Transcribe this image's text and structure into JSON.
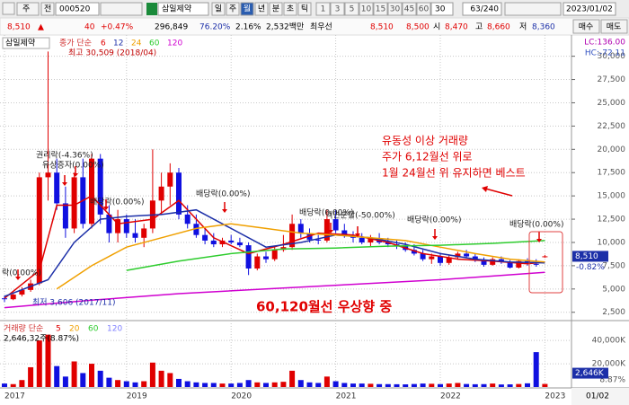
{
  "toolbar": {
    "period_type": "주",
    "market": "전",
    "code": "000520",
    "name": "삼일제약",
    "intervals": [
      "일",
      "주",
      "월",
      "년",
      "분",
      "초",
      "틱"
    ],
    "minutes": [
      "1",
      "3",
      "5",
      "10",
      "15",
      "30",
      "45",
      "60"
    ],
    "tick_choice": "30",
    "count": "63/240",
    "date": "2023/01/02"
  },
  "info_bar": {
    "price": "8,510",
    "arrow": "▲",
    "change": "40",
    "change_pct": "+0.47%",
    "volume": "296,849",
    "volume_ratio": "76.20%",
    "turnover": "2.16%",
    "amount": "2,532백만",
    "best_label": "최우선",
    "ask": "8,510",
    "bid": "8,500",
    "open_label": "시",
    "open": "8,470",
    "high_label": "고",
    "high": "8,660",
    "low_label": "저",
    "low": "8,360",
    "buy": "매수",
    "sell": "매도"
  },
  "chart_data": {
    "type": "candlestick",
    "name": "삼일제약",
    "ma_label": "종가 단순",
    "lc": "LC:136.00",
    "hc": "HC:-72.11",
    "categories": [
      "2017",
      null,
      null,
      null,
      null,
      null,
      null,
      null,
      null,
      null,
      null,
      null,
      null,
      null,
      "2019",
      null,
      null,
      null,
      null,
      null,
      null,
      null,
      null,
      null,
      null,
      null,
      "2020",
      null,
      null,
      null,
      null,
      null,
      null,
      null,
      null,
      null,
      null,
      null,
      "2021",
      null,
      null,
      null,
      null,
      null,
      null,
      null,
      null,
      null,
      null,
      null,
      "2022",
      null,
      null,
      null,
      null,
      null,
      null,
      null,
      null,
      null,
      null,
      null,
      "2023"
    ],
    "open": [
      4000,
      3900,
      4400,
      4900,
      5600,
      17000,
      17500,
      14200,
      11500,
      17000,
      12000,
      19000,
      13000,
      11000,
      12500,
      11000,
      10500,
      11500,
      14500,
      16000,
      17500,
      13000,
      12000,
      10800,
      10200,
      9800,
      10200,
      10000,
      9700,
      7200,
      8500,
      8200,
      9200,
      9500,
      12000,
      11000,
      10300,
      10200,
      12500,
      11300,
      10800,
      10500,
      10000,
      10400,
      10000,
      9800,
      9600,
      9200,
      8800,
      8200,
      8500,
      7800,
      8400,
      8800,
      8500,
      8100,
      7600,
      8200,
      7900,
      7300,
      8000,
      7700,
      8470
    ],
    "high": [
      4300,
      4600,
      5200,
      6000,
      17500,
      30509,
      19000,
      16000,
      17500,
      19000,
      19500,
      19500,
      14000,
      13500,
      13000,
      12500,
      12000,
      20000,
      17500,
      18500,
      18000,
      14000,
      13000,
      11500,
      11000,
      10500,
      10800,
      10500,
      10000,
      8800,
      9000,
      9500,
      10800,
      13000,
      12500,
      11500,
      10800,
      13500,
      13500,
      12000,
      11200,
      11000,
      10800,
      11000,
      10500,
      10200,
      10000,
      9800,
      9200,
      8800,
      8900,
      8600,
      9000,
      9200,
      8800,
      8400,
      8400,
      8500,
      8100,
      8200,
      8300,
      8200,
      8660
    ],
    "low": [
      3606,
      3800,
      4200,
      4700,
      5400,
      14500,
      13500,
      10500,
      11000,
      11500,
      11500,
      12000,
      10000,
      10000,
      10500,
      10000,
      9500,
      11000,
      13000,
      14000,
      12500,
      11500,
      10500,
      9800,
      9500,
      9500,
      9800,
      9500,
      6500,
      7000,
      7800,
      8000,
      9000,
      9200,
      10500,
      10000,
      9800,
      10000,
      11000,
      10500,
      10000,
      9800,
      9600,
      9800,
      9500,
      9300,
      9000,
      8600,
      8000,
      7700,
      7500,
      7600,
      8200,
      8300,
      7900,
      7400,
      7500,
      7700,
      7200,
      7200,
      7500,
      7400,
      8360
    ],
    "close": [
      3900,
      4400,
      4900,
      5600,
      17000,
      17500,
      14200,
      11500,
      17000,
      12000,
      19000,
      13000,
      11000,
      12500,
      11000,
      10500,
      11500,
      14500,
      16000,
      17500,
      13000,
      12000,
      10800,
      10200,
      9800,
      10200,
      10000,
      9700,
      7200,
      8500,
      8200,
      9200,
      9500,
      12000,
      11000,
      10300,
      10200,
      12500,
      11300,
      10800,
      10500,
      10000,
      10400,
      10000,
      9800,
      9600,
      9200,
      8800,
      8200,
      8500,
      7800,
      8400,
      8800,
      8500,
      8100,
      7600,
      8200,
      7900,
      7300,
      8000,
      7700,
      7600,
      8510
    ],
    "ma": [
      {
        "name": "6",
        "color": "#e00000",
        "x": [
          0,
          4,
          6,
          8,
          10,
          13,
          17,
          20,
          24,
          28,
          32,
          36,
          40,
          44,
          48,
          52,
          56,
          60,
          62
        ],
        "values": [
          4000,
          7000,
          14000,
          14000,
          15000,
          12000,
          12500,
          14500,
          10500,
          8800,
          9800,
          11000,
          10800,
          10000,
          8800,
          8200,
          8000,
          7700,
          7900
        ]
      },
      {
        "name": "12",
        "color": "#1c2fa8",
        "x": [
          0,
          5,
          8,
          11,
          14,
          18,
          22,
          26,
          30,
          34,
          38,
          42,
          46,
          50,
          54,
          58,
          62
        ],
        "values": [
          4200,
          6000,
          10000,
          12500,
          12800,
          13000,
          13500,
          11500,
          9500,
          10000,
          10800,
          10500,
          9800,
          8800,
          8200,
          7900,
          7800
        ]
      },
      {
        "name": "24",
        "color": "#f0a000",
        "x": [
          6,
          10,
          14,
          18,
          22,
          26,
          30,
          34,
          38,
          42,
          46,
          50,
          54,
          58,
          62
        ],
        "values": [
          5000,
          7500,
          9500,
          10500,
          11500,
          12000,
          11500,
          11000,
          10800,
          10500,
          10200,
          9500,
          8800,
          8200,
          7900
        ]
      },
      {
        "name": "60",
        "color": "#2ecc2e",
        "x": [
          14,
          20,
          26,
          32,
          38,
          44,
          50,
          56,
          62
        ],
        "values": [
          7000,
          8000,
          8800,
          9300,
          9400,
          9600,
          9700,
          9900,
          10200
        ]
      },
      {
        "name": "120",
        "color": "#d000d0",
        "x": [
          0,
          10,
          20,
          30,
          40,
          50,
          62
        ],
        "values": [
          3000,
          3800,
          4500,
          5000,
          5500,
          6000,
          6800
        ]
      }
    ],
    "ylim": [
      1800,
      31700
    ],
    "yticks": [
      {
        "value": 2500,
        "label": "2,500"
      },
      {
        "value": 5000,
        "label": "5,000"
      },
      {
        "value": 7500,
        "label": "7,500"
      },
      {
        "value": 10000,
        "label": "10,000"
      },
      {
        "value": 12500,
        "label": "12,500"
      },
      {
        "value": 15000,
        "label": "15,000"
      },
      {
        "value": 17500,
        "label": "17,500"
      },
      {
        "value": 20000,
        "label": "20,000"
      },
      {
        "value": 22500,
        "label": "22,500"
      },
      {
        "value": 25000,
        "label": "25,000"
      },
      {
        "value": 27500,
        "label": "27,500"
      },
      {
        "value": 30000,
        "label": "30,000"
      }
    ],
    "grid": true,
    "price_marker": {
      "value": 8510,
      "label": "8,510"
    },
    "change_label": "-0.82%",
    "events": [
      "락(0.00%)",
      "권리락(-4.36%)",
      "유상증자(0.00%)",
      "배당락(0.00%)",
      "배당락(0.00%)",
      "배당락(0.00%)",
      "액면분할(-50.00%)",
      "배당락(0.00%)",
      "배당락(0.00%)"
    ],
    "high_note": "최고 30,509 (2018/04)",
    "low_note": "최저 3,606 (2017/11)",
    "notes": [
      "유동성 이상 거래량",
      "주가 6,12월선 위로",
      "1월 24월선 위 유지하면 베스트"
    ],
    "note_bottom": "60,120월선 우상향 중",
    "volume": {
      "legend": "거래량 단순",
      "ma_names": [
        "5",
        "20",
        "60",
        "120"
      ],
      "current": "2,646,32주(8.87%)",
      "values": [
        3000,
        2500,
        6000,
        17000,
        40000,
        45000,
        18000,
        9000,
        22000,
        12000,
        20000,
        14000,
        8000,
        6000,
        5000,
        4000,
        5000,
        21000,
        14000,
        12000,
        7000,
        5000,
        4000,
        3500,
        3500,
        3000,
        3000,
        3500,
        6000,
        4000,
        3500,
        4000,
        4500,
        14000,
        6000,
        4000,
        3500,
        9000,
        5000,
        3500,
        3000,
        3000,
        2800,
        2500,
        2500,
        2400,
        2300,
        2600,
        3000,
        2800,
        2500,
        3000,
        3500,
        2600,
        2400,
        2500,
        3000,
        2200,
        2300,
        2600,
        3200,
        30000,
        2646
      ],
      "ylim": [
        0,
        54000
      ],
      "yticks": [
        {
          "value": 20000,
          "label": "20,000K"
        },
        {
          "value": 40000,
          "label": "40,000K"
        }
      ],
      "marker": {
        "value": 2646,
        "label": "2,646K"
      },
      "pct": "8.87%"
    },
    "x_end_label": "01/02"
  }
}
